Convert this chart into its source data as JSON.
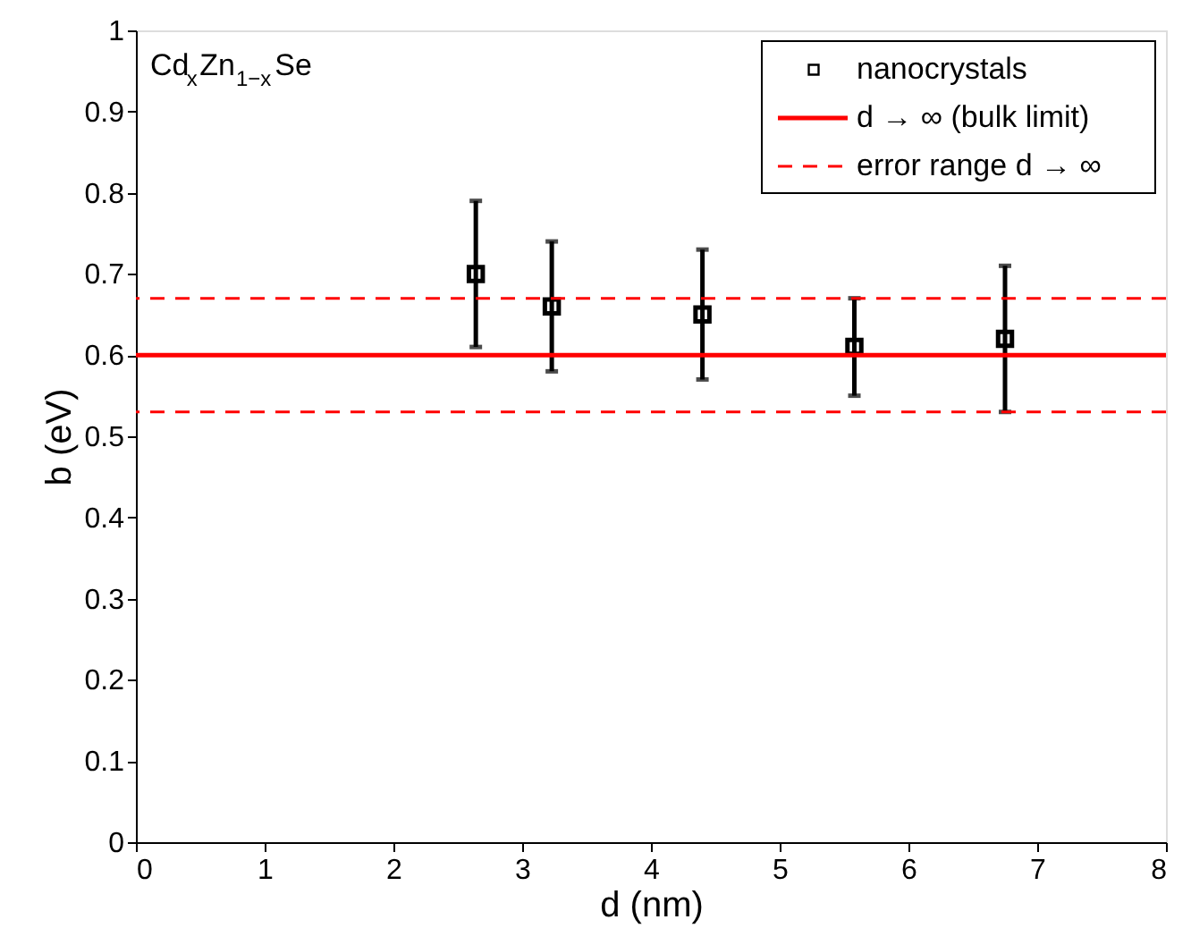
{
  "chart_data": {
    "type": "scatter",
    "xlabel": "d (nm)",
    "ylabel": "b (eV)",
    "annotations": [
      "Cd$_{x}$Zn$_{1−x}$Se"
    ],
    "series": [
      {
        "name": "nanocrystals",
        "color": "#000000",
        "x": [
          2.64,
          3.23,
          4.4,
          5.58,
          6.75
        ],
        "values": [
          0.7,
          0.66,
          0.65,
          0.61,
          0.62
        ],
        "errors": [
          [
            0.61,
            0.79
          ],
          [
            0.58,
            0.74
          ],
          [
            0.57,
            0.73
          ],
          [
            0.55,
            0.67
          ],
          [
            0.53,
            0.71
          ]
        ]
      }
    ],
    "ref_lines": [
      {
        "axis": "y",
        "value": 0.6,
        "label": "d → ∞ (bulk limit)",
        "color": "#ff0000",
        "line_style": "solid"
      },
      {
        "axis": "y",
        "value": 0.67,
        "label": "error range d → ∞",
        "color": "#ff0000",
        "line_style": "dashed"
      },
      {
        "axis": "y",
        "value": 0.53,
        "color": "#ff0000",
        "line_style": "dashed"
      }
    ],
    "xlim": [
      0,
      8
    ],
    "xticks": [
      0,
      1,
      2,
      3,
      4,
      5,
      6,
      7,
      8
    ],
    "ylim": [
      0,
      1
    ],
    "yticks": [
      0,
      0.1,
      0.2,
      0.3,
      0.4,
      0.5,
      0.6,
      0.7,
      0.8,
      0.9,
      1
    ],
    "marker": "square",
    "grid": false,
    "legend": "top right"
  }
}
